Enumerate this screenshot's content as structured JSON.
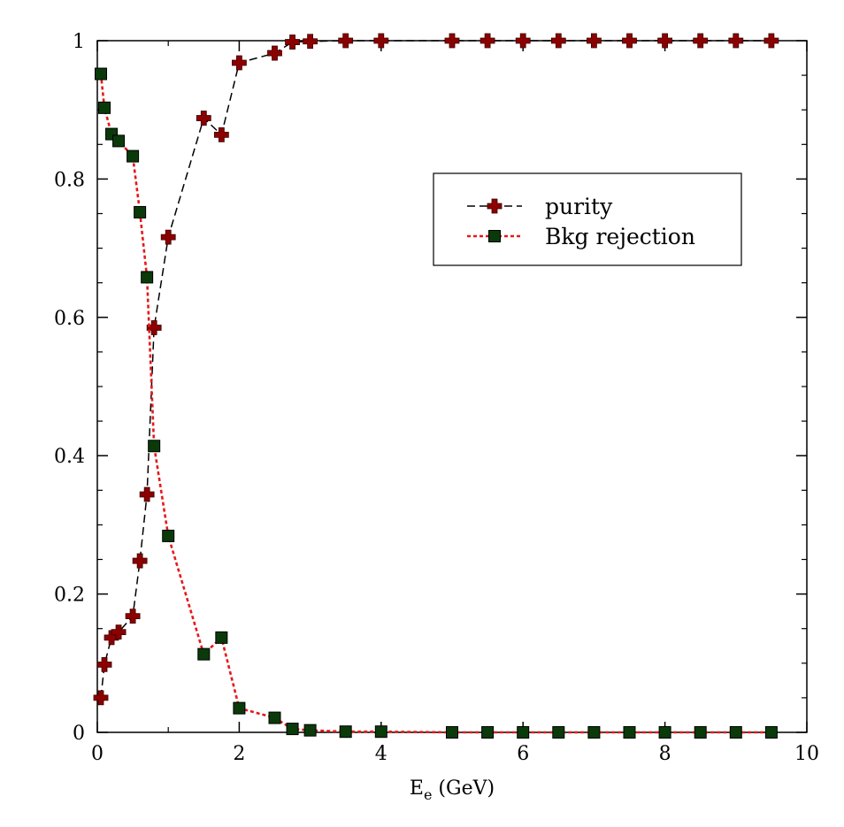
{
  "chart_data": {
    "type": "line",
    "title": "",
    "xlabel": {
      "main": "E",
      "sub": "e",
      "rest": " (GeV)"
    },
    "ylabel": "",
    "xlim": [
      0,
      10
    ],
    "ylim": [
      0,
      1
    ],
    "x_ticks": [
      0,
      2,
      4,
      6,
      8,
      10
    ],
    "x_tick_labels": [
      "0",
      "2",
      "4",
      "6",
      "8",
      "10"
    ],
    "y_ticks": [
      0,
      0.2,
      0.4,
      0.6,
      0.8,
      1
    ],
    "y_tick_labels": [
      "0",
      "0.2",
      "0.4",
      "0.6",
      "0.8",
      "1"
    ],
    "grid": false,
    "legend_position": "top-right",
    "series": [
      {
        "name": "purity",
        "color": "#000000",
        "marker": "plus",
        "marker_color": "#8b0000",
        "line_style": "dashed",
        "x": [
          0.05,
          0.1,
          0.2,
          0.3,
          0.5,
          0.6,
          0.7,
          0.8,
          1.0,
          1.5,
          1.75,
          2.0,
          2.5,
          2.75,
          3.0,
          3.5,
          4.0,
          5.0,
          5.5,
          6.0,
          6.5,
          7.0,
          7.5,
          8.0,
          8.5,
          9.0,
          9.5
        ],
        "y": [
          0.05,
          0.098,
          0.137,
          0.145,
          0.168,
          0.248,
          0.344,
          0.585,
          0.716,
          0.888,
          0.864,
          0.968,
          0.982,
          0.998,
          0.999,
          1.0,
          1.0,
          1.0,
          1.0,
          1.0,
          1.0,
          1.0,
          1.0,
          1.0,
          1.0,
          1.0,
          1.0
        ]
      },
      {
        "name": "Bkg rejection",
        "color": "#e41a1a",
        "marker": "square",
        "marker_color": "#0a3a0a",
        "line_style": "dotted",
        "x": [
          0.05,
          0.1,
          0.2,
          0.3,
          0.5,
          0.6,
          0.7,
          0.8,
          1.0,
          1.5,
          1.75,
          2.0,
          2.5,
          2.75,
          3.0,
          3.5,
          4.0,
          5.0,
          5.5,
          6.0,
          6.5,
          7.0,
          7.5,
          8.0,
          8.5,
          9.0,
          9.5
        ],
        "y": [
          0.952,
          0.903,
          0.865,
          0.855,
          0.833,
          0.752,
          0.658,
          0.414,
          0.284,
          0.113,
          0.137,
          0.035,
          0.021,
          0.005,
          0.003,
          0.001,
          0.001,
          0.0,
          0.0,
          0.0,
          0.0,
          0.0,
          0.0,
          0.0,
          0.0,
          0.0,
          0.0
        ]
      }
    ]
  }
}
